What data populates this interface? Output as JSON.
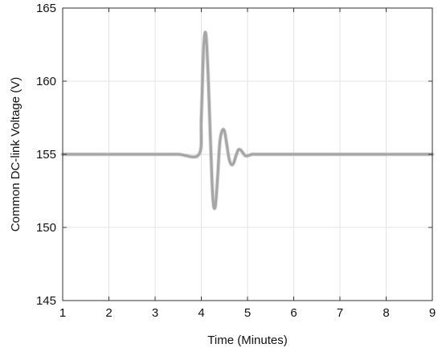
{
  "chart_data": {
    "type": "line",
    "title": "",
    "xlabel": "Time (Minutes)",
    "ylabel": "Common DC-link Voltage (V)",
    "xlim": [
      1,
      9
    ],
    "ylim": [
      145,
      165
    ],
    "xticks": [
      1,
      2,
      3,
      4,
      5,
      6,
      7,
      8,
      9
    ],
    "yticks": [
      145,
      150,
      155,
      160,
      165
    ],
    "xtick_labels": [
      "1",
      "2",
      "3",
      "4",
      "5",
      "6",
      "7",
      "8",
      "9"
    ],
    "ytick_labels": [
      "145",
      "150",
      "155",
      "160",
      "165"
    ],
    "grid": true,
    "series": [
      {
        "color": "#a6a6a6",
        "x": [
          1.0,
          1.5,
          2.0,
          2.5,
          3.0,
          3.5,
          3.95,
          4.0,
          4.05,
          4.1,
          4.15,
          4.2,
          4.25,
          4.3,
          4.35,
          4.4,
          4.45,
          4.5,
          4.55,
          4.6,
          4.65,
          4.7,
          4.75,
          4.8,
          4.85,
          4.9,
          4.95,
          5.0,
          5.1,
          5.2,
          5.4,
          6.0,
          7.0,
          8.0,
          9.0
        ],
        "y": [
          155.0,
          155.0,
          155.0,
          155.0,
          155.0,
          155.0,
          155.0,
          157.5,
          162.3,
          163.2,
          160.2,
          155.8,
          152.0,
          151.4,
          153.3,
          155.8,
          156.6,
          156.6,
          155.7,
          154.7,
          154.3,
          154.4,
          154.9,
          155.3,
          155.3,
          155.1,
          154.9,
          154.9,
          155.0,
          155.0,
          155.0,
          155.0,
          155.0,
          155.0,
          155.0
        ]
      }
    ]
  }
}
